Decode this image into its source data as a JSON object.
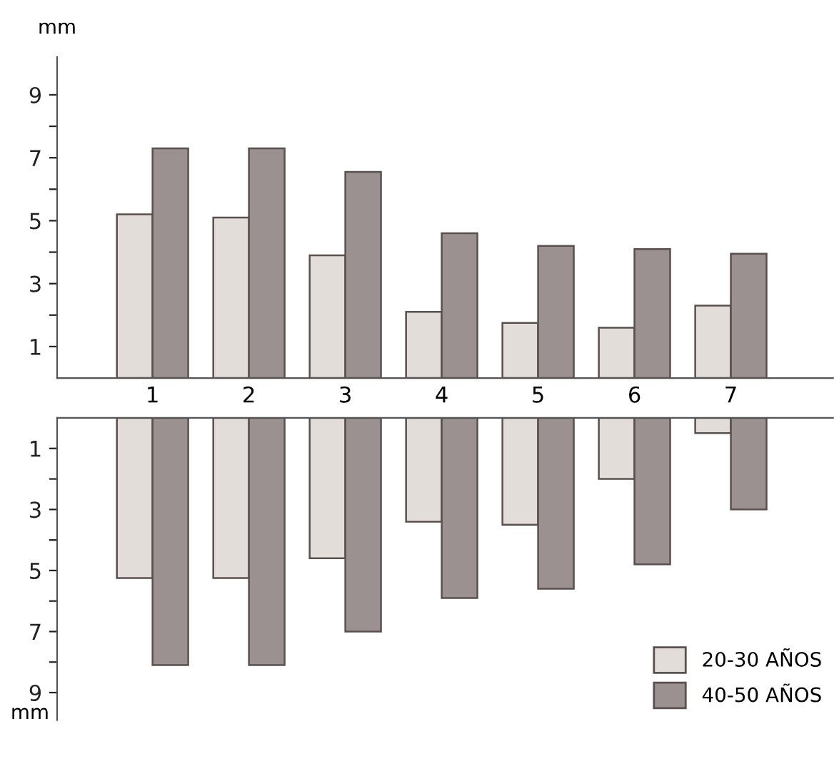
{
  "chart_data": [
    {
      "type": "bar",
      "ylabel": "mm",
      "categories": [
        "1",
        "2",
        "3",
        "4",
        "5",
        "6",
        "7"
      ],
      "series": [
        {
          "color": "#e2ddd8",
          "values": [
            5.2,
            5.1,
            3.9,
            2.1,
            1.75,
            1.6,
            2.3
          ]
        },
        {
          "color": "#9b9191",
          "values": [
            7.3,
            7.3,
            6.55,
            4.6,
            4.2,
            4.1,
            3.95
          ]
        }
      ],
      "ylim": [
        0,
        10.2
      ],
      "yticks": [
        1,
        {
          "value": 2,
          "label": null
        },
        3,
        {
          "value": 4,
          "label": null
        },
        5,
        {
          "value": 6,
          "label": null
        },
        7,
        {
          "value": 8,
          "label": null
        },
        9
      ],
      "grid": false,
      "legend": false
    },
    {
      "type": "bar",
      "ylabel": "mm",
      "categories": [
        "1",
        "2",
        "3",
        "4",
        "5",
        "6",
        "7"
      ],
      "tick_labels": "y",
      "series": [
        {
          "name": "20-30 AÑOS",
          "color": "#e2ddd8",
          "values": [
            5.25,
            5.25,
            4.6,
            3.4,
            3.5,
            2.0,
            0.5
          ]
        },
        {
          "name": "40-50 AÑOS",
          "color": "#9b9191",
          "values": [
            8.1,
            8.1,
            7.0,
            5.9,
            5.6,
            4.8,
            3.0
          ]
        }
      ],
      "ylim": [
        9.9,
        0
      ],
      "yticks": [
        1,
        {
          "value": 2,
          "label": null
        },
        3,
        {
          "value": 4,
          "label": null
        },
        5,
        {
          "value": 6,
          "label": null
        },
        7,
        {
          "value": 8,
          "label": null
        },
        9
      ],
      "grid": false,
      "legend": "bottom right"
    }
  ]
}
